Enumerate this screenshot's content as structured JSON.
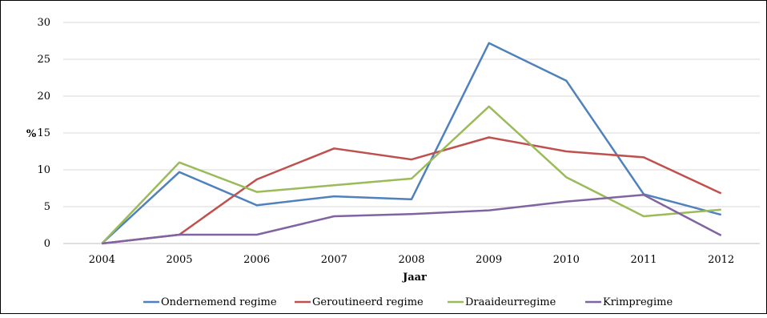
{
  "chart_data": {
    "type": "line",
    "title": "",
    "xlabel": "Jaar",
    "ylabel": "%",
    "x": [
      "2004",
      "2005",
      "2006",
      "2007",
      "2008",
      "2009",
      "2010",
      "2011",
      "2012"
    ],
    "ylim": [
      0,
      30
    ],
    "yticks": [
      0,
      5,
      10,
      15,
      20,
      25,
      30
    ],
    "grid": "horizontal",
    "legend_position": "bottom",
    "series": [
      {
        "name": "Ondernemend regime",
        "color": "#4f81bd",
        "values": [
          0,
          9.7,
          5.2,
          6.4,
          6.0,
          27.2,
          22.1,
          6.7,
          3.9
        ]
      },
      {
        "name": "Geroutineerd regime",
        "color": "#c0504d",
        "values": [
          0,
          1.2,
          8.7,
          12.9,
          11.4,
          14.4,
          12.5,
          11.7,
          6.8
        ]
      },
      {
        "name": "Draaideurregime",
        "color": "#9bbb59",
        "values": [
          0,
          11.0,
          7.0,
          7.9,
          8.8,
          18.6,
          9.0,
          3.7,
          4.6
        ]
      },
      {
        "name": "Krimpregime",
        "color": "#8064a2",
        "values": [
          0,
          1.2,
          1.2,
          3.7,
          4.0,
          4.5,
          5.7,
          6.6,
          1.1
        ]
      }
    ]
  }
}
